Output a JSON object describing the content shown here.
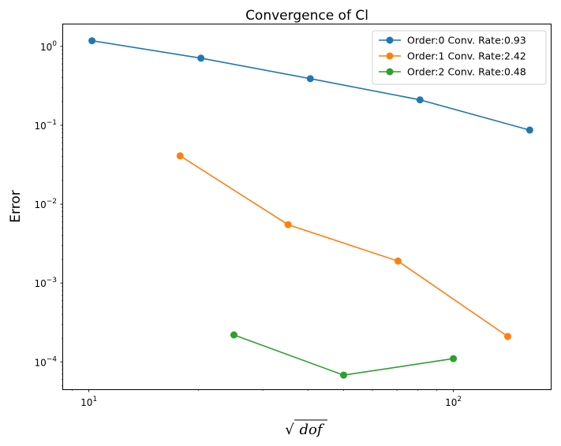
{
  "chart_data": {
    "type": "line",
    "title": "Convergence of Cl",
    "xlabel": "√dof",
    "xlabel_math": {
      "radical": "√",
      "symbol": "dof"
    },
    "ylabel": "Error",
    "xscale": "log",
    "yscale": "log",
    "xlim": [
      8.5,
      185
    ],
    "ylim": [
      4.5e-05,
      1.9
    ],
    "grid": false,
    "legend_position": "top-right",
    "x_ticks": [
      {
        "value": 10,
        "base": "10",
        "exp": "1"
      },
      {
        "value": 100,
        "base": "10",
        "exp": "2"
      }
    ],
    "y_ticks": [
      {
        "value": 1,
        "base": "10",
        "exp": "0"
      },
      {
        "value": 0.1,
        "base": "10",
        "exp": "−1"
      },
      {
        "value": 0.01,
        "base": "10",
        "exp": "−2"
      },
      {
        "value": 0.001,
        "base": "10",
        "exp": "−3"
      },
      {
        "value": 0.0001,
        "base": "10",
        "exp": "−4"
      }
    ],
    "series": [
      {
        "name": "Order:0 Conv. Rate:0.93",
        "color": "#1f77b4",
        "x": [
          10.2,
          20.3,
          40.5,
          81,
          162
        ],
        "y": [
          1.18,
          0.71,
          0.39,
          0.21,
          0.087
        ]
      },
      {
        "name": "Order:1 Conv. Rate:2.42",
        "color": "#ff7f0e",
        "x": [
          17.8,
          35.2,
          70.5,
          141
        ],
        "y": [
          0.041,
          0.0055,
          0.0019,
          0.00021
        ]
      },
      {
        "name": "Order:2 Conv. Rate:0.48",
        "color": "#2ca02c",
        "x": [
          25,
          50,
          100
        ],
        "y": [
          0.00022,
          6.8e-05,
          0.00011
        ]
      }
    ]
  }
}
